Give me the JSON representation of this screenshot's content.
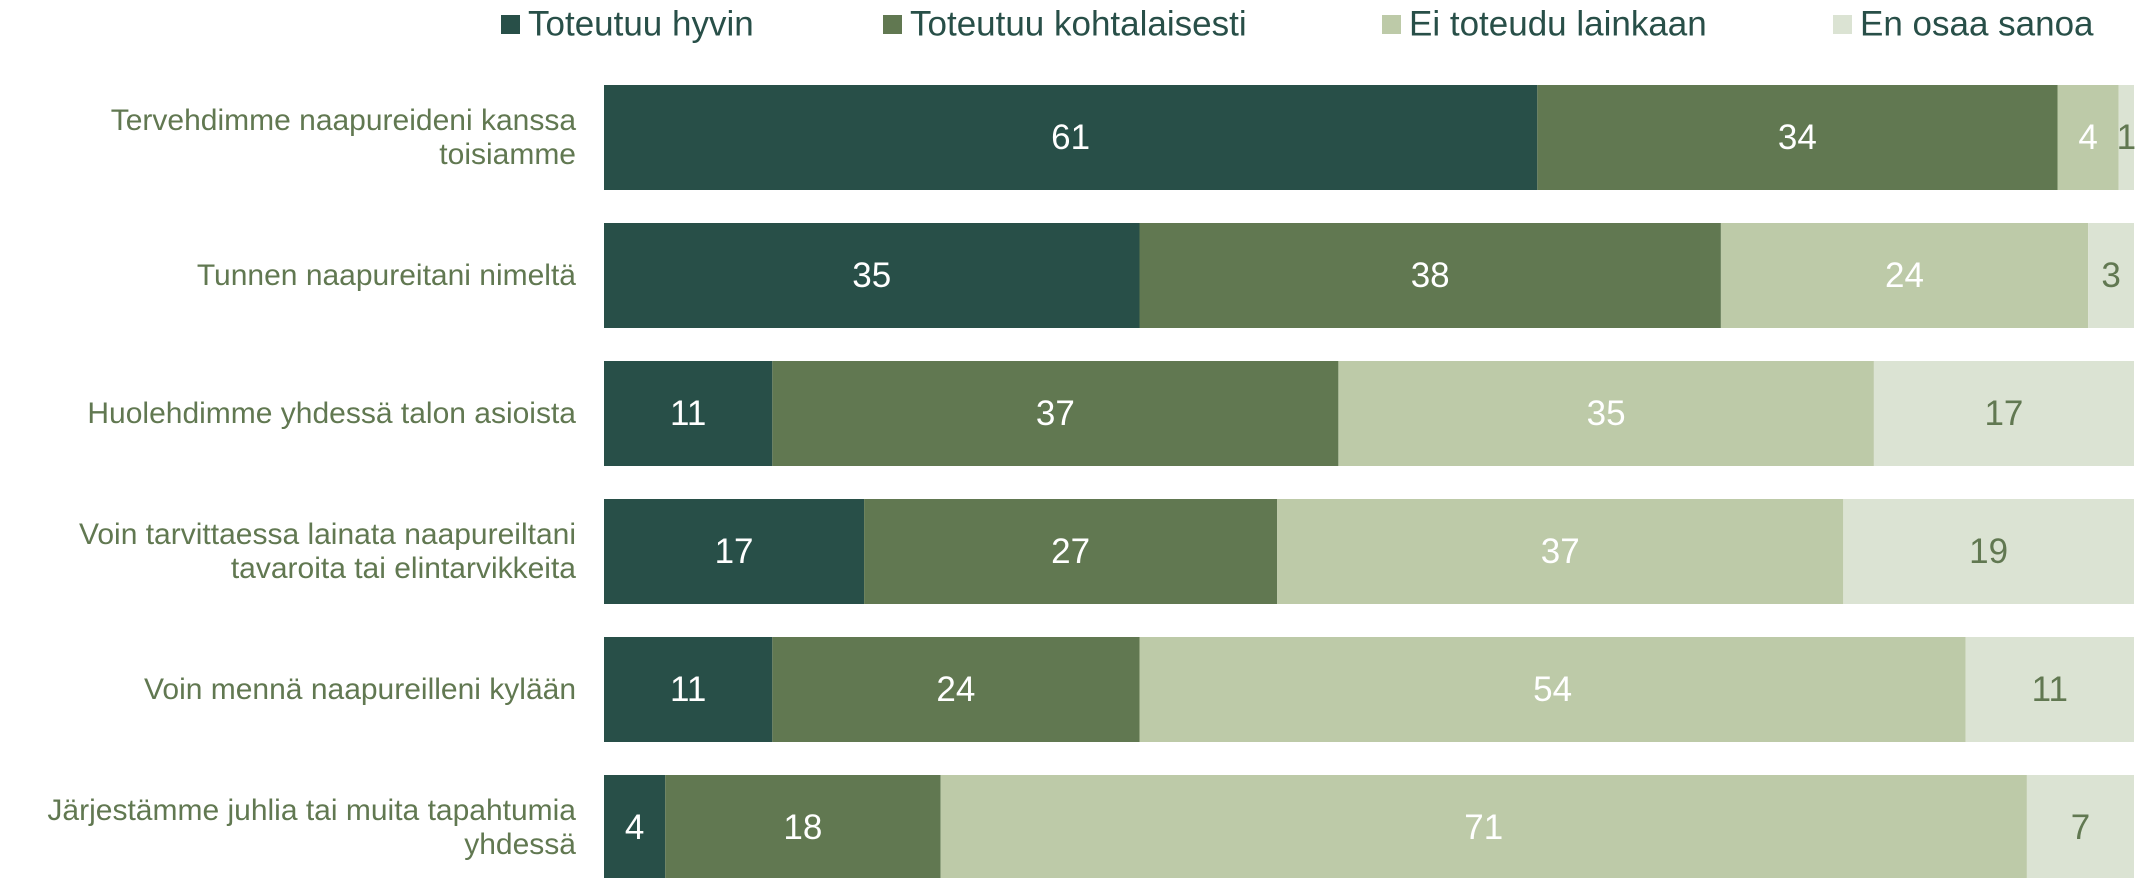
{
  "chart_data": {
    "type": "stacked-bar-horizontal",
    "categories": [
      "Tervehdimme naapureideni kanssa toisiamme",
      "Tunnen naapureitani nimeltä",
      "Huolehdimme yhdessä talon asioista",
      "Voin tarvittaessa lainata naapureiltani tavaroita tai elintarvikkeita",
      "Voin mennä naapureilleni kylään",
      "Järjestämme juhlia tai muita tapahtumia yhdessä"
    ],
    "series": [
      {
        "name": "Toteutuu hyvin",
        "color": "#284f48",
        "label_color": "#ffffff",
        "values": [
          61,
          35,
          11,
          17,
          11,
          4
        ]
      },
      {
        "name": "Toteutuu kohtalaisesti",
        "color": "#617851",
        "label_color": "#ffffff",
        "values": [
          34,
          38,
          37,
          27,
          24,
          18
        ]
      },
      {
        "name": "Ei toteudu lainkaan",
        "color": "#bdcaa8",
        "label_color": "#ffffff",
        "values": [
          4,
          24,
          35,
          37,
          54,
          71
        ]
      },
      {
        "name": "En osaa sanoa",
        "color": "#dbe3d3",
        "label_color": "#617851",
        "values": [
          1,
          3,
          17,
          19,
          11,
          7
        ]
      }
    ],
    "xlim": [
      0,
      100
    ],
    "legend": "top"
  }
}
